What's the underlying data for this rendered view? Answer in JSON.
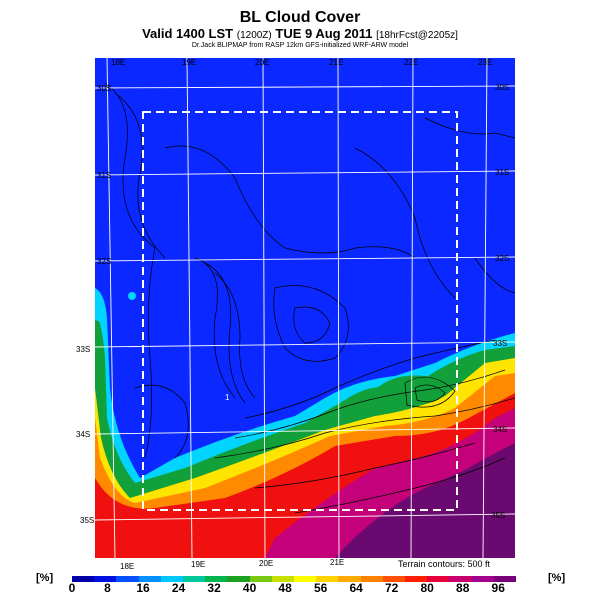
{
  "header": {
    "title": "BL Cloud Cover",
    "valid_main": "Valid 1400 LST",
    "valid_z": "(1200Z)",
    "valid_date": "TUE 9 Aug 2011",
    "forecast": "[18hrFcst@2205z]",
    "credit": "Dr.Jack BLIPMAP from RASP 12km GFS-initialized WRF-ARW model"
  },
  "map": {
    "lon_labels_top": [
      "18E",
      "19E",
      "20E",
      "21E",
      "22E",
      "23E"
    ],
    "lon_labels_bottom": [
      "18E",
      "19E",
      "20E",
      "21E"
    ],
    "lat_labels_right": [
      "30S",
      "31S",
      "32S",
      "33S",
      "34S",
      "35S"
    ],
    "lat_labels_left": [
      "30S",
      "31S",
      "32S",
      "33S",
      "34S",
      "35S"
    ],
    "marker": "1",
    "terrain_note": "Terrain contours: 500 ft",
    "colors": {
      "clear": "#0a28ff",
      "cyan": "#00d4ff",
      "green": "#12a03a",
      "yellow": "#ffe400",
      "orange": "#ff8a00",
      "red": "#f01010",
      "magenta": "#c4007a",
      "purple": "#6a0a70"
    }
  },
  "colorbar": {
    "unit": "[%]",
    "ticks": [
      "0",
      "8",
      "16",
      "24",
      "32",
      "40",
      "48",
      "56",
      "64",
      "72",
      "80",
      "88",
      "96"
    ],
    "colors": [
      "#0000a8",
      "#0010e0",
      "#0050ff",
      "#0090ff",
      "#00c8ff",
      "#00c89c",
      "#00b450",
      "#1ea020",
      "#78c814",
      "#c8e000",
      "#ffff00",
      "#ffd200",
      "#ffaa00",
      "#ff8200",
      "#ff5000",
      "#ff1e00",
      "#e6003c",
      "#c8006e",
      "#a0008c",
      "#780078"
    ]
  }
}
